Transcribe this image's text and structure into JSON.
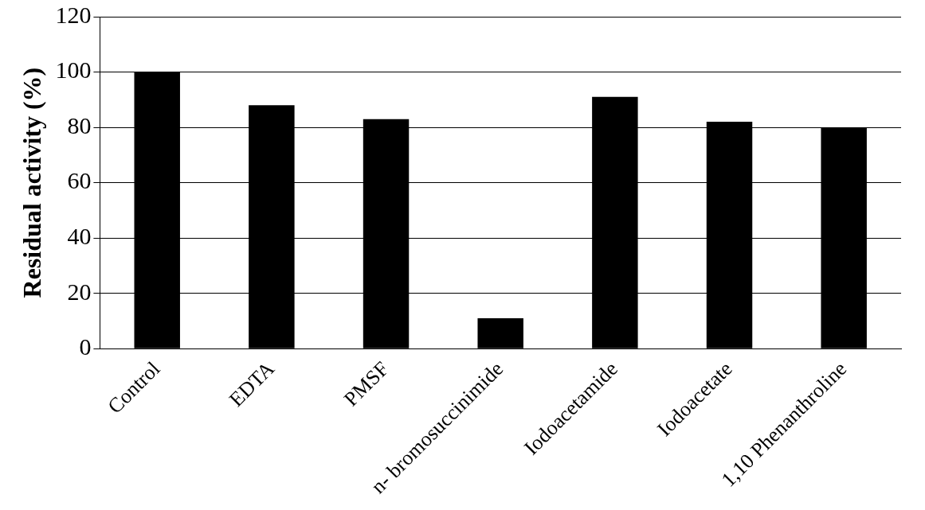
{
  "chart_data": {
    "type": "bar",
    "ylabel": "Residual activity (%)",
    "categories": [
      "Control",
      "EDTA",
      "PMSF",
      "n- bromosuccinimide",
      "Iodoacetamide",
      "Iodoacetate",
      "1,10 Phenanthroline"
    ],
    "values": [
      100,
      88,
      83,
      11,
      91,
      82,
      80
    ],
    "color": "#000000",
    "ylim": [
      0,
      120
    ],
    "yticks": [
      0,
      20,
      40,
      60,
      80,
      100,
      120
    ],
    "grid": "y"
  }
}
